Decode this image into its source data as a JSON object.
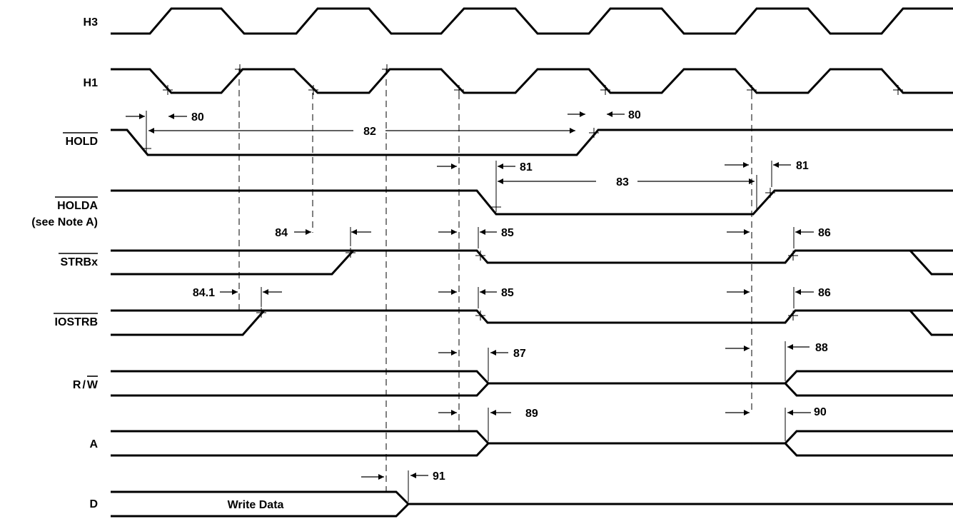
{
  "signals": {
    "h3": "H3",
    "h1": "H1",
    "hold": "HOLD",
    "holda": "HOLDA",
    "holda_note": "(see Note A)",
    "strbx": "STRBx",
    "iostrb": "IOSTRB",
    "rw_r": "R",
    "rw_slash": "/",
    "rw_w": "W",
    "a": "A",
    "d": "D"
  },
  "data_field": "Write Data",
  "timing_labels": {
    "t80a": "80",
    "t80b": "80",
    "t82": "82",
    "t81a": "81",
    "t81b": "81",
    "t83": "83",
    "t84": "84",
    "t84_1": "84.1",
    "t85a": "85",
    "t85b": "85",
    "t86a": "86",
    "t86b": "86",
    "t87": "87",
    "t88": "88",
    "t89": "89",
    "t90": "90",
    "t91": "91"
  }
}
